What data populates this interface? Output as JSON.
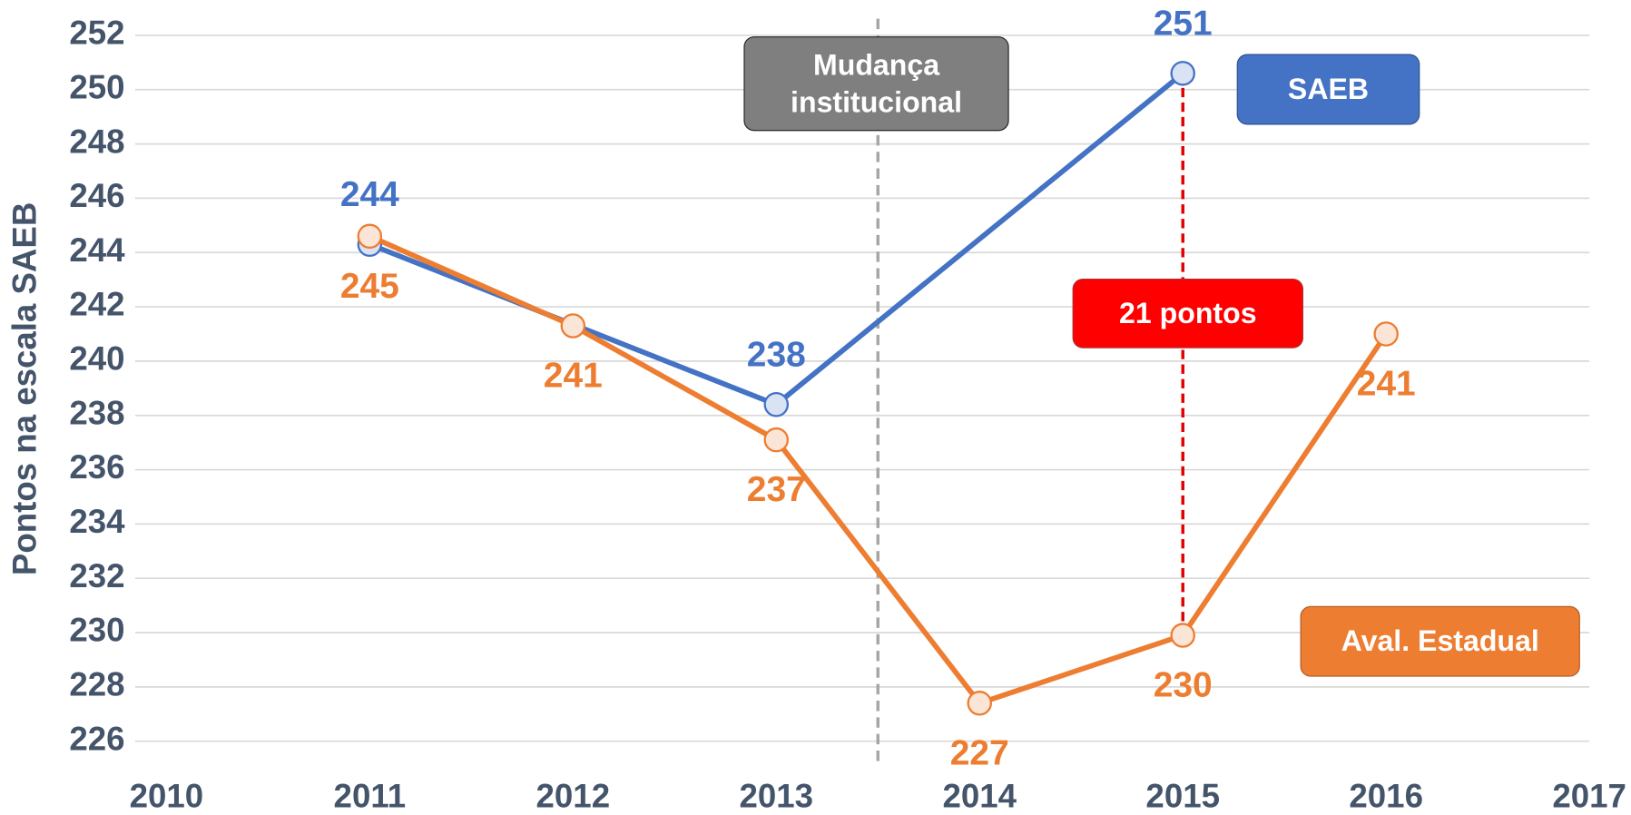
{
  "chart_data": {
    "type": "line",
    "y_label": "Pontos na escala SAEB",
    "xlim": [
      2010,
      2017
    ],
    "xticks": [
      2010,
      2011,
      2012,
      2013,
      2014,
      2015,
      2016,
      2017
    ],
    "ylim": [
      226,
      252
    ],
    "yticks": [
      226,
      228,
      230,
      232,
      234,
      236,
      238,
      240,
      242,
      244,
      246,
      248,
      250,
      252
    ],
    "grid": true,
    "series": [
      {
        "name": "SAEB",
        "color": "#4472c4",
        "x": [
          2011,
          2013,
          2015
        ],
        "values": [
          244.3,
          238.4,
          250.6
        ],
        "value_labels": [
          "244",
          "238",
          "251"
        ]
      },
      {
        "name": "Aval. Estadual",
        "color": "#ed7d31",
        "x": [
          2011,
          2012,
          2013,
          2014,
          2015,
          2016
        ],
        "values": [
          244.6,
          241.3,
          237.1,
          227.4,
          229.9,
          241.0
        ],
        "value_labels": [
          "245",
          "241",
          "237",
          "227",
          "230",
          "241"
        ]
      }
    ],
    "annotations": [
      {
        "text": "Mudança institucional",
        "x": 2013.5
      },
      {
        "text": "21 pontos",
        "x": 2015
      }
    ]
  }
}
